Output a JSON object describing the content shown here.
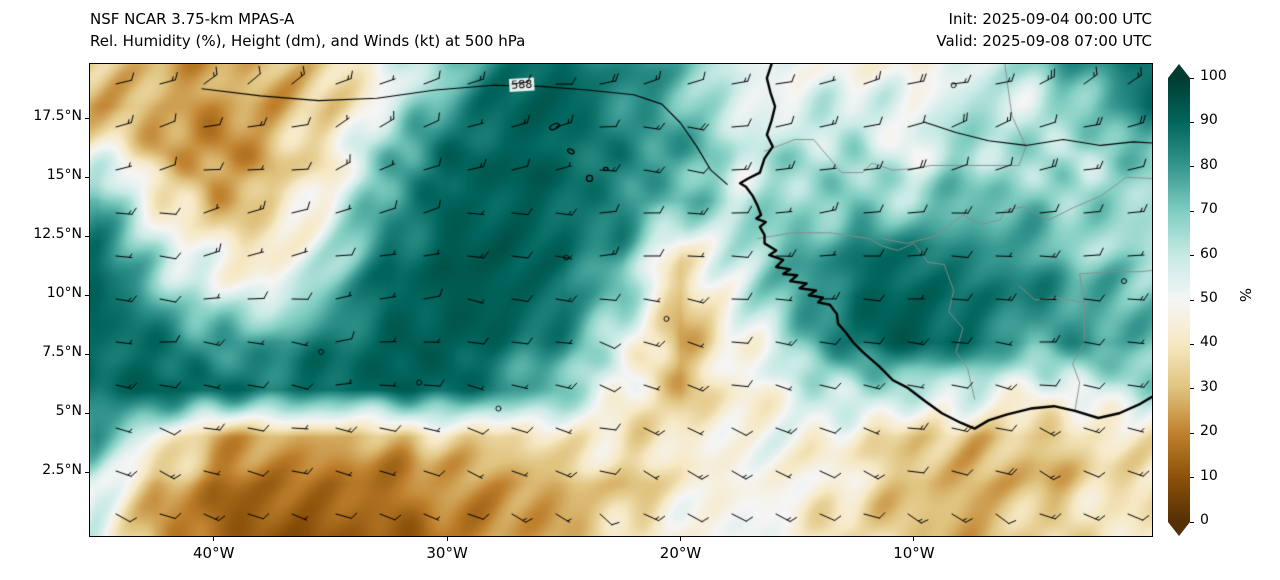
{
  "header": {
    "title_line1": "NSF NCAR 3.75-km MPAS-A",
    "title_line2": "Rel. Humidity (%), Height (dm), and Winds (kt) at 500 hPa",
    "init_label": "Init: 2025-09-04 00:00 UTC",
    "valid_label": "Valid: 2025-09-08 07:00 UTC"
  },
  "axes": {
    "lon_range": [
      -45.3,
      0.2
    ],
    "lat_range": [
      -0.2,
      19.8
    ],
    "x_ticks": [
      {
        "label": "40°W",
        "lon": -40
      },
      {
        "label": "30°W",
        "lon": -30
      },
      {
        "label": "20°W",
        "lon": -20
      },
      {
        "label": "10°W",
        "lon": -10
      }
    ],
    "y_ticks": [
      {
        "label": "17.5°N",
        "lat": 17.5
      },
      {
        "label": "15°N",
        "lat": 15
      },
      {
        "label": "12.5°N",
        "lat": 12.5
      },
      {
        "label": "10°N",
        "lat": 10
      },
      {
        "label": "7.5°N",
        "lat": 7.5
      },
      {
        "label": "5°N",
        "lat": 5
      },
      {
        "label": "2.5°N",
        "lat": 2.5
      }
    ]
  },
  "colorbar": {
    "label": "%",
    "min": 0,
    "max": 100,
    "ticks": [
      0,
      10,
      20,
      30,
      40,
      50,
      60,
      70,
      80,
      90,
      100
    ],
    "stops": [
      {
        "v": 0,
        "c": "#543005"
      },
      {
        "v": 10,
        "c": "#8c510a"
      },
      {
        "v": 20,
        "c": "#bf812d"
      },
      {
        "v": 30,
        "c": "#dfc27d"
      },
      {
        "v": 40,
        "c": "#f6e8c3"
      },
      {
        "v": 50,
        "c": "#f5f5f5"
      },
      {
        "v": 60,
        "c": "#c7eae5"
      },
      {
        "v": 70,
        "c": "#80cdc1"
      },
      {
        "v": 80,
        "c": "#35978f"
      },
      {
        "v": 90,
        "c": "#01665e"
      },
      {
        "v": 100,
        "c": "#003c30"
      }
    ]
  },
  "chart_data": {
    "type": "heatmap",
    "variable": "relative_humidity_pct_500hPa",
    "overlays": [
      "height_contour_588dm",
      "wind_barbs_kt",
      "coastlines",
      "country_borders"
    ],
    "humidity_grid": {
      "lons": [
        -45,
        -42.5,
        -40,
        -37.5,
        -35,
        -32.5,
        -30,
        -27.5,
        -25,
        -22.5,
        -20,
        -17.5,
        -15,
        -12.5,
        -10,
        -7.5,
        -5,
        -2.5,
        0
      ],
      "lats": [
        20,
        18,
        16,
        14,
        12,
        10,
        8,
        6,
        4,
        2,
        0
      ],
      "values": [
        [
          32,
          28,
          26,
          30,
          38,
          50,
          68,
          84,
          88,
          82,
          76,
          58,
          50,
          52,
          42,
          55,
          68,
          82,
          88
        ],
        [
          28,
          24,
          22,
          26,
          36,
          55,
          78,
          90,
          90,
          84,
          76,
          60,
          52,
          56,
          48,
          62,
          60,
          72,
          88
        ],
        [
          50,
          30,
          24,
          28,
          42,
          68,
          88,
          92,
          90,
          86,
          78,
          58,
          62,
          66,
          56,
          68,
          62,
          58,
          72
        ],
        [
          78,
          48,
          30,
          32,
          50,
          76,
          90,
          92,
          90,
          84,
          72,
          62,
          66,
          72,
          66,
          74,
          68,
          62,
          68
        ],
        [
          86,
          62,
          42,
          42,
          62,
          86,
          92,
          93,
          90,
          78,
          42,
          58,
          74,
          84,
          88,
          84,
          78,
          68,
          60
        ],
        [
          90,
          76,
          56,
          56,
          76,
          90,
          93,
          92,
          88,
          68,
          30,
          52,
          78,
          90,
          92,
          90,
          84,
          78,
          68
        ],
        [
          90,
          86,
          76,
          80,
          86,
          92,
          92,
          88,
          80,
          58,
          28,
          48,
          68,
          86,
          92,
          86,
          78,
          84,
          72
        ],
        [
          88,
          90,
          88,
          88,
          90,
          92,
          90,
          80,
          68,
          52,
          32,
          44,
          54,
          58,
          62,
          58,
          54,
          58,
          62
        ],
        [
          82,
          52,
          30,
          24,
          24,
          28,
          34,
          40,
          44,
          40,
          38,
          48,
          50,
          44,
          34,
          28,
          30,
          34,
          44
        ],
        [
          62,
          30,
          18,
          14,
          14,
          17,
          22,
          27,
          30,
          32,
          40,
          46,
          48,
          40,
          30,
          24,
          27,
          34,
          40
        ],
        [
          50,
          26,
          14,
          11,
          11,
          14,
          19,
          24,
          28,
          34,
          44,
          48,
          46,
          38,
          33,
          28,
          33,
          38,
          44
        ]
      ]
    },
    "wind_grid": {
      "units": "kt",
      "lons": [
        -45,
        -40,
        -35,
        -30,
        -25,
        -20,
        -15,
        -10,
        -5,
        0
      ],
      "lats": [
        20,
        16,
        12,
        8,
        4,
        0
      ],
      "dir_speed": [
        [
          [
            70,
            15
          ],
          [
            62,
            15
          ],
          [
            58,
            10
          ],
          [
            66,
            10
          ],
          [
            78,
            15
          ],
          [
            84,
            15
          ],
          [
            74,
            10
          ],
          [
            70,
            15
          ],
          [
            64,
            20
          ],
          [
            58,
            20
          ]
        ],
        [
          [
            78,
            10
          ],
          [
            74,
            10
          ],
          [
            70,
            10
          ],
          [
            76,
            10
          ],
          [
            84,
            10
          ],
          [
            90,
            15
          ],
          [
            84,
            10
          ],
          [
            80,
            15
          ],
          [
            74,
            15
          ],
          [
            68,
            15
          ]
        ],
        [
          [
            88,
            10
          ],
          [
            84,
            10
          ],
          [
            80,
            5
          ],
          [
            86,
            10
          ],
          [
            90,
            10
          ],
          [
            96,
            10
          ],
          [
            90,
            10
          ],
          [
            86,
            10
          ],
          [
            90,
            10
          ],
          [
            84,
            10
          ]
        ],
        [
          [
            98,
            10
          ],
          [
            94,
            10
          ],
          [
            90,
            5
          ],
          [
            96,
            5
          ],
          [
            100,
            10
          ],
          [
            106,
            10
          ],
          [
            100,
            10
          ],
          [
            96,
            10
          ],
          [
            100,
            10
          ],
          [
            94,
            10
          ]
        ],
        [
          [
            108,
            10
          ],
          [
            104,
            10
          ],
          [
            100,
            10
          ],
          [
            106,
            5
          ],
          [
            110,
            10
          ],
          [
            116,
            10
          ],
          [
            110,
            10
          ],
          [
            104,
            10
          ],
          [
            110,
            15
          ],
          [
            104,
            10
          ]
        ],
        [
          [
            118,
            15
          ],
          [
            114,
            10
          ],
          [
            110,
            10
          ],
          [
            116,
            10
          ],
          [
            120,
            10
          ],
          [
            124,
            15
          ],
          [
            120,
            10
          ],
          [
            114,
            15
          ],
          [
            120,
            15
          ],
          [
            114,
            10
          ]
        ]
      ]
    },
    "height_contour": {
      "level_dm": 588,
      "label": "588",
      "label_pos": [
        -26.8,
        18.9
      ],
      "segments": [
        [
          [
            -40.5,
            18.75
          ],
          [
            -38,
            18.45
          ],
          [
            -35.5,
            18.25
          ],
          [
            -33,
            18.35
          ],
          [
            -30.5,
            18.7
          ],
          [
            -28,
            18.9
          ],
          [
            -26,
            18.85
          ],
          [
            -24,
            18.7
          ],
          [
            -22,
            18.5
          ],
          [
            -20.8,
            18.1
          ],
          [
            -20.0,
            17.3
          ],
          [
            -19.3,
            16.3
          ],
          [
            -18.7,
            15.3
          ],
          [
            -18.0,
            14.7
          ]
        ],
        [
          [
            -9.6,
            17.35
          ],
          [
            -8.2,
            16.9
          ],
          [
            -6.8,
            16.55
          ],
          [
            -5.2,
            16.35
          ],
          [
            -3.6,
            16.6
          ],
          [
            -2.0,
            16.35
          ],
          [
            -0.6,
            16.5
          ],
          [
            0.2,
            16.45
          ]
        ]
      ],
      "closed_minima": [
        [
          -31.2,
          6.3
        ],
        [
          -27.8,
          5.2
        ],
        [
          -24.9,
          11.6
        ],
        [
          -20.6,
          9.0
        ],
        [
          -8.3,
          18.9
        ],
        [
          -1.0,
          10.6
        ],
        [
          -35.4,
          7.6
        ]
      ]
    },
    "coastline": [
      [
        -16.1,
        19.8
      ],
      [
        -16.3,
        19.2
      ],
      [
        -16.15,
        18.6
      ],
      [
        -15.95,
        18.0
      ],
      [
        -16.1,
        17.4
      ],
      [
        -16.3,
        16.8
      ],
      [
        -16.05,
        16.3
      ],
      [
        -16.4,
        15.8
      ],
      [
        -16.6,
        15.2
      ],
      [
        -17.1,
        14.95
      ],
      [
        -17.45,
        14.75
      ],
      [
        -17.2,
        14.6
      ],
      [
        -16.9,
        14.2
      ],
      [
        -16.7,
        13.8
      ],
      [
        -16.55,
        13.4
      ],
      [
        -16.75,
        13.25
      ],
      [
        -16.35,
        13.1
      ],
      [
        -16.6,
        12.9
      ],
      [
        -16.4,
        12.55
      ],
      [
        -16.4,
        12.2
      ],
      [
        -15.9,
        11.9
      ],
      [
        -16.2,
        11.7
      ],
      [
        -15.6,
        11.5
      ],
      [
        -15.9,
        11.2
      ],
      [
        -15.3,
        11.1
      ],
      [
        -15.6,
        10.9
      ],
      [
        -15.0,
        10.85
      ],
      [
        -15.3,
        10.6
      ],
      [
        -14.6,
        10.5
      ],
      [
        -14.9,
        10.3
      ],
      [
        -14.2,
        10.2
      ],
      [
        -14.5,
        10.0
      ],
      [
        -13.9,
        9.9
      ],
      [
        -14.1,
        9.7
      ],
      [
        -13.6,
        9.6
      ],
      [
        -13.3,
        9.2
      ],
      [
        -13.25,
        8.8
      ],
      [
        -12.9,
        8.4
      ],
      [
        -12.6,
        8.0
      ],
      [
        -12.2,
        7.6
      ],
      [
        -11.5,
        7.0
      ],
      [
        -10.9,
        6.4
      ],
      [
        -10.3,
        6.1
      ],
      [
        -9.5,
        5.5
      ],
      [
        -8.8,
        5.0
      ],
      [
        -8.0,
        4.6
      ],
      [
        -7.4,
        4.35
      ],
      [
        -6.8,
        4.7
      ],
      [
        -6.0,
        4.95
      ],
      [
        -5.0,
        5.2
      ],
      [
        -4.0,
        5.3
      ],
      [
        -3.1,
        5.1
      ],
      [
        -2.1,
        4.8
      ],
      [
        -1.2,
        5.0
      ],
      [
        -0.3,
        5.4
      ],
      [
        0.3,
        5.75
      ]
    ],
    "islands": [
      {
        "lon": -25.4,
        "lat": 17.15,
        "rx": 5,
        "ry": 2.5,
        "rot": -0.4
      },
      {
        "lon": -24.7,
        "lat": 16.1,
        "rx": 3.5,
        "ry": 2,
        "rot": 0.5
      },
      {
        "lon": -23.9,
        "lat": 14.95,
        "rx": 3,
        "ry": 3,
        "rot": 0
      },
      {
        "lon": -23.2,
        "lat": 15.35,
        "rx": 2.2,
        "ry": 1.6,
        "rot": 0
      }
    ],
    "borders": [
      [
        [
          -16.4,
          16.1
        ],
        [
          -15.1,
          16.6
        ],
        [
          -14.3,
          16.6
        ],
        [
          -13.1,
          15.2
        ],
        [
          -12.2,
          15.2
        ],
        [
          -11.8,
          15.6
        ],
        [
          -10.9,
          15.3
        ],
        [
          -9.7,
          15.4
        ],
        [
          -9.3,
          15.5
        ],
        [
          -5.5,
          15.5
        ],
        [
          -5.2,
          16.3
        ],
        [
          -5.8,
          17.6
        ],
        [
          -6.0,
          19.0
        ],
        [
          -6.1,
          19.8
        ]
      ],
      [
        [
          -16.7,
          12.4
        ],
        [
          -15.2,
          12.65
        ],
        [
          -13.6,
          12.65
        ],
        [
          -11.9,
          12.4
        ],
        [
          -11.4,
          12.1
        ],
        [
          -10.7,
          11.9
        ],
        [
          -10.0,
          12.2
        ],
        [
          -9.4,
          11.4
        ],
        [
          -8.7,
          11.3
        ],
        [
          -8.3,
          10.2
        ],
        [
          -8.5,
          9.3
        ],
        [
          -7.9,
          8.6
        ],
        [
          -8.2,
          7.6
        ],
        [
          -7.7,
          6.9
        ],
        [
          -7.4,
          5.6
        ]
      ],
      [
        [
          -3.1,
          5.1
        ],
        [
          -2.9,
          6.3
        ],
        [
          -3.2,
          7.1
        ],
        [
          -2.7,
          8.0
        ],
        [
          -2.7,
          9.7
        ],
        [
          -2.9,
          10.9
        ],
        [
          -1.6,
          11.0
        ],
        [
          -0.3,
          11.0
        ],
        [
          0.2,
          11.05
        ]
      ],
      [
        [
          0.2,
          14.95
        ],
        [
          -0.9,
          15.0
        ],
        [
          -2.0,
          14.2
        ],
        [
          -3.2,
          13.7
        ],
        [
          -4.2,
          13.2
        ],
        [
          -5.3,
          13.75
        ],
        [
          -6.1,
          13.6
        ],
        [
          -6.3,
          13.2
        ],
        [
          -7.1,
          13.0
        ],
        [
          -7.9,
          13.4
        ],
        [
          -9.1,
          12.5
        ],
        [
          -10.3,
          12.2
        ],
        [
          -11.4,
          12.4
        ]
      ],
      [
        [
          -5.5,
          10.4
        ],
        [
          -4.8,
          9.8
        ],
        [
          -3.9,
          9.9
        ],
        [
          -2.7,
          9.7
        ]
      ]
    ]
  }
}
